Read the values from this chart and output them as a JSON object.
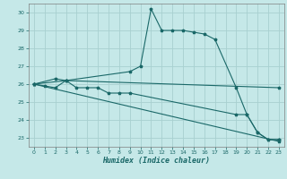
{
  "xlabel": "Humidex (Indice chaleur)",
  "background_color": "#c5e8e8",
  "grid_color": "#a8d0d0",
  "line_color": "#1a6868",
  "xlim": [
    -0.5,
    23.5
  ],
  "ylim": [
    22.5,
    30.5
  ],
  "yticks": [
    23,
    24,
    25,
    26,
    27,
    28,
    29,
    30
  ],
  "xticks": [
    0,
    1,
    2,
    3,
    4,
    5,
    6,
    7,
    8,
    9,
    10,
    11,
    12,
    13,
    14,
    15,
    16,
    17,
    18,
    19,
    20,
    21,
    22,
    23
  ],
  "lines": [
    {
      "x": [
        0,
        2,
        3,
        9,
        10,
        11,
        12,
        13,
        14,
        15,
        16,
        17,
        19,
        20,
        21,
        22,
        23
      ],
      "y": [
        26.0,
        26.3,
        26.2,
        26.7,
        27.0,
        30.2,
        29.0,
        29.0,
        29.0,
        28.9,
        28.8,
        28.5,
        25.8,
        24.3,
        23.3,
        22.9,
        22.9
      ]
    },
    {
      "x": [
        0,
        3,
        23
      ],
      "y": [
        26.0,
        26.2,
        25.8
      ]
    },
    {
      "x": [
        0,
        1,
        2,
        3,
        4,
        5,
        6,
        7,
        8,
        9,
        19,
        20,
        21,
        22,
        23
      ],
      "y": [
        26.0,
        25.9,
        25.8,
        26.2,
        25.8,
        25.8,
        25.8,
        25.5,
        25.5,
        25.5,
        24.3,
        24.3,
        23.3,
        22.9,
        22.9
      ]
    },
    {
      "x": [
        0,
        23
      ],
      "y": [
        26.0,
        22.8
      ]
    }
  ]
}
